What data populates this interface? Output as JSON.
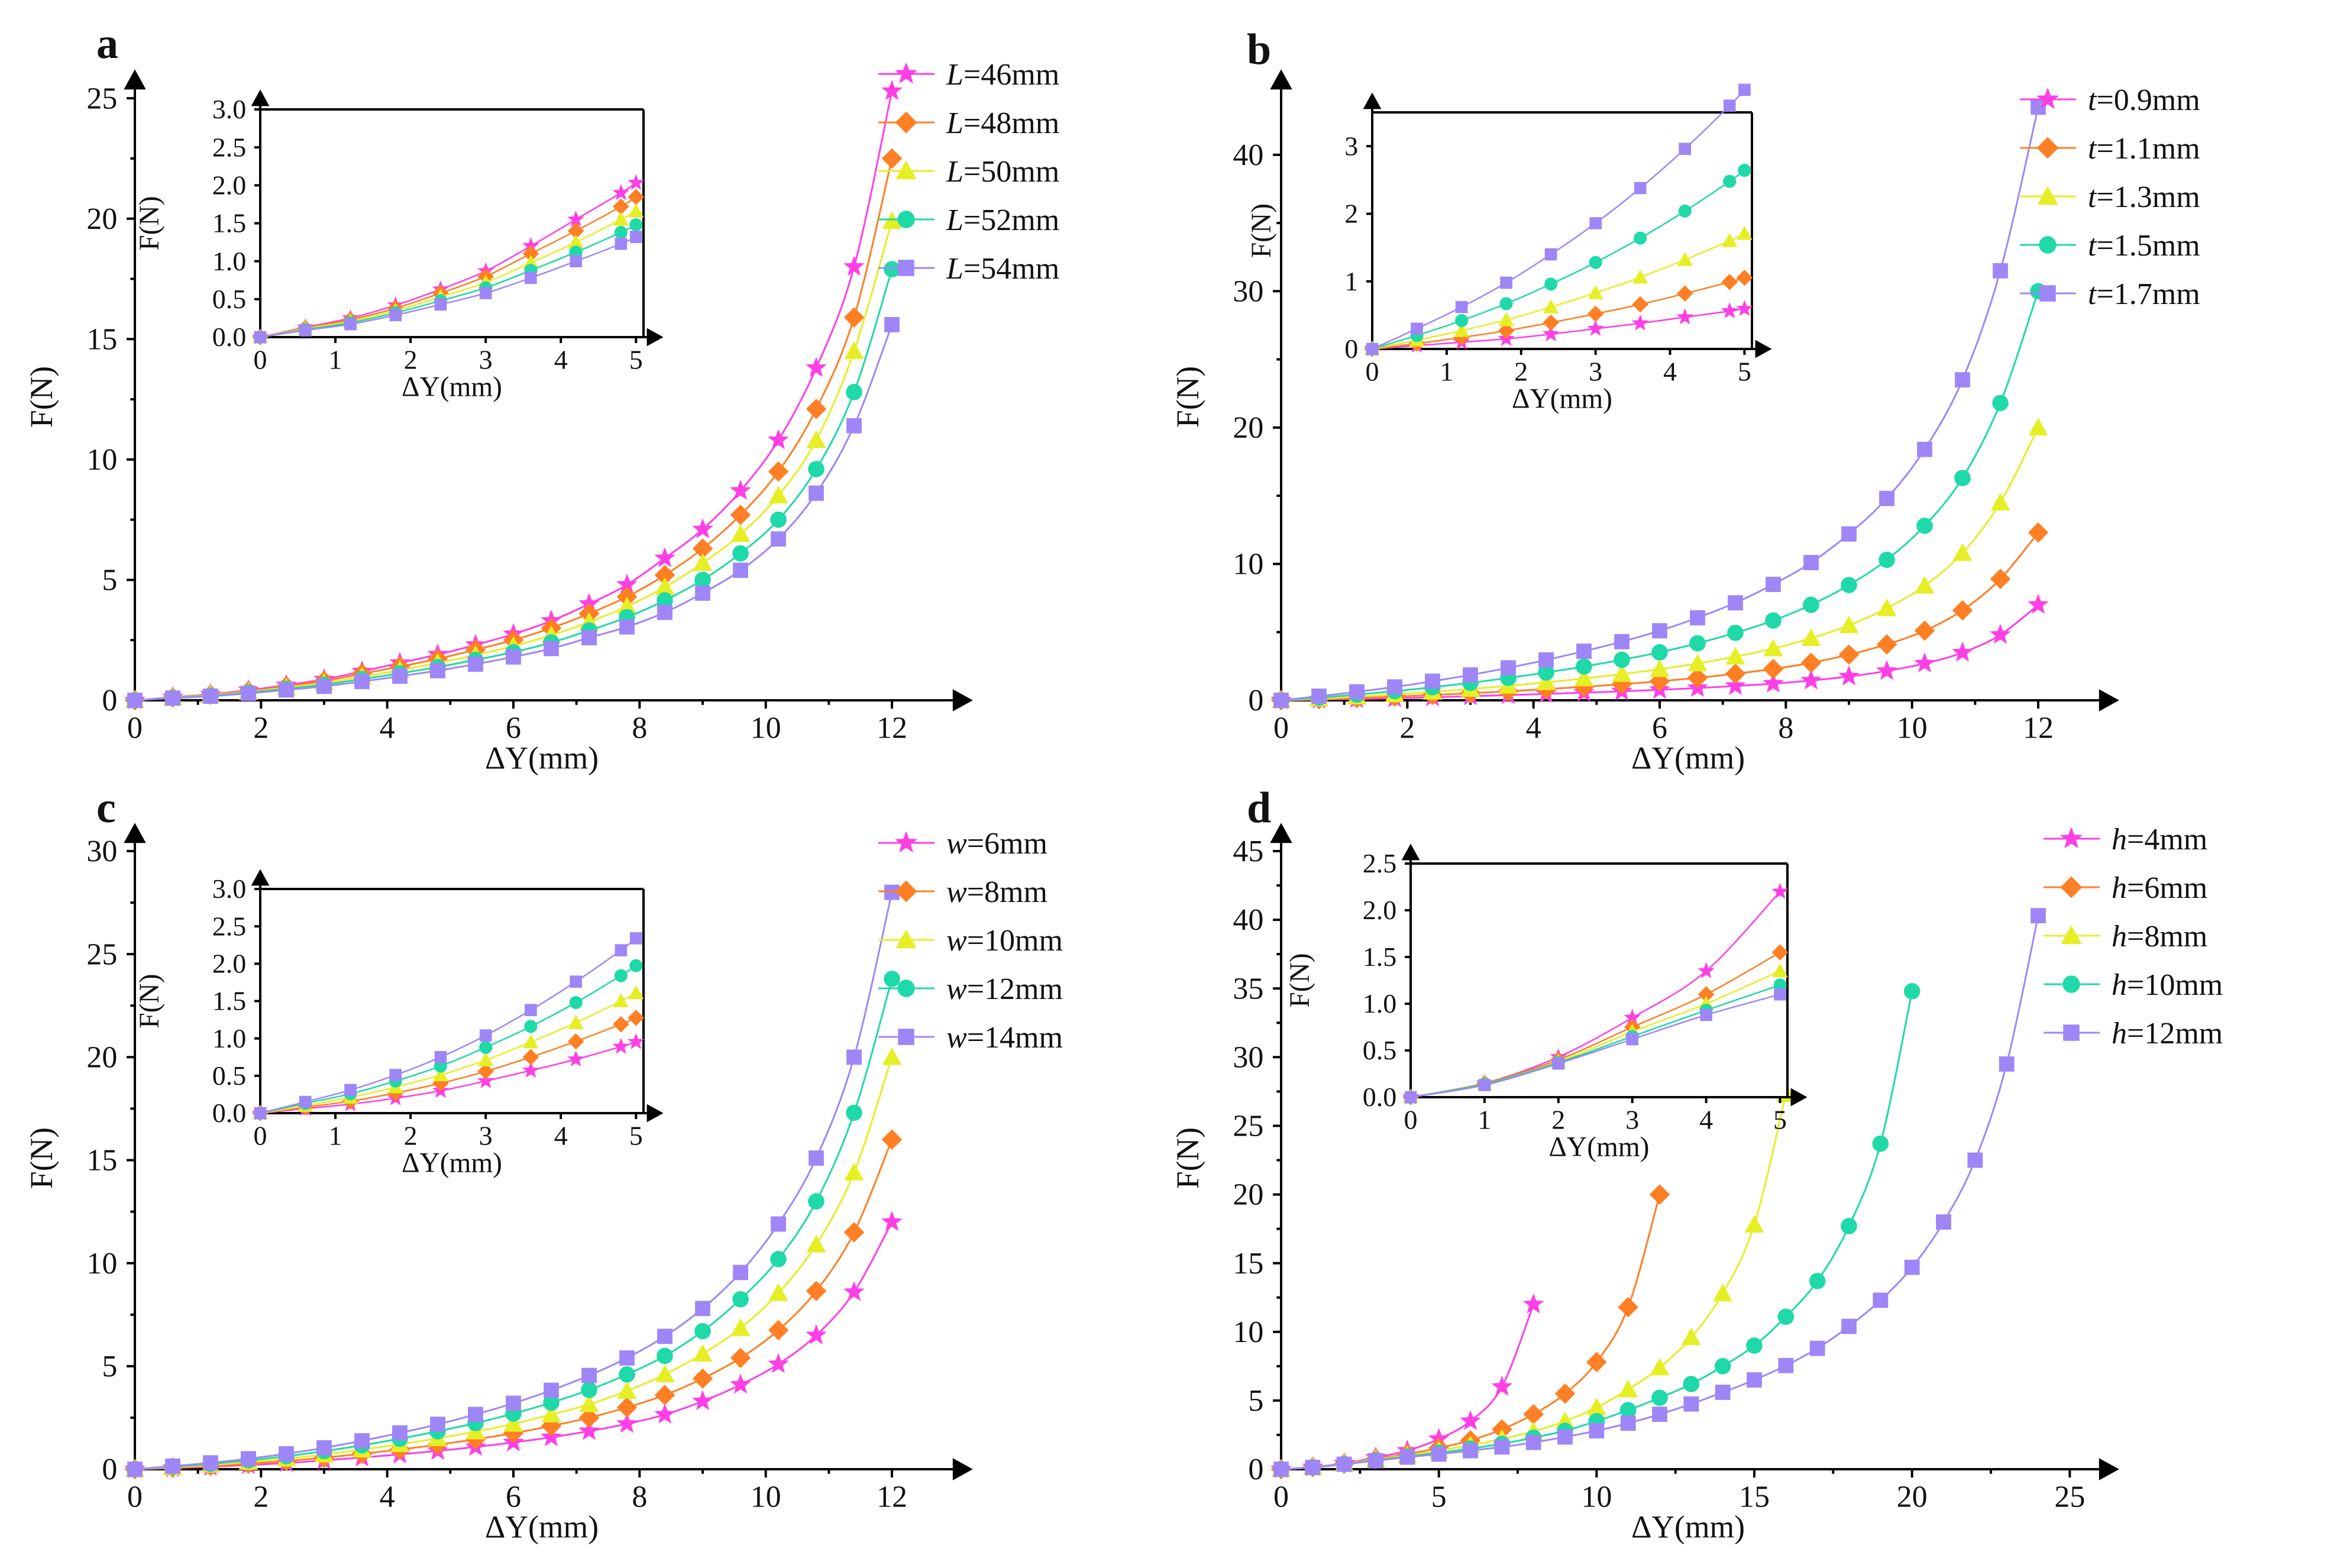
{
  "figure": {
    "description_panels": [
      "a",
      "b",
      "c",
      "d"
    ]
  },
  "colors": {
    "s1": "#ff3fe6",
    "s2": "#ff7f24",
    "s3": "#e6ee25",
    "s4": "#1fd9a8",
    "s5": "#9f86f7",
    "axis": "#000000"
  },
  "chart_data": [
    {
      "panel": "a",
      "type": "line",
      "xlabel": "ΔY(mm)",
      "ylabel": "F(N)",
      "xlim": [
        0,
        12.9
      ],
      "ylim": [
        0,
        25.2
      ],
      "xticks": [
        0,
        2,
        4,
        6,
        8,
        10,
        12
      ],
      "yticks": [
        0,
        5,
        10,
        15,
        20,
        25
      ],
      "legend": [
        {
          "prefix": "L",
          "value": "=46mm"
        },
        {
          "prefix": "L",
          "value": "=48mm"
        },
        {
          "prefix": "L",
          "value": "=50mm"
        },
        {
          "prefix": "L",
          "value": "=52mm"
        },
        {
          "prefix": "L",
          "value": "=54mm"
        }
      ],
      "x": [
        0,
        0.6,
        1.2,
        1.8,
        2.4,
        3.0,
        3.6,
        4.2,
        4.8,
        5.4,
        6.0,
        6.6,
        7.2,
        7.8,
        8.4,
        9.0,
        9.6,
        10.2,
        10.8,
        11.4,
        12.0
      ],
      "series": [
        {
          "name": "L=46mm",
          "values": [
            0,
            0.13,
            0.25,
            0.42,
            0.63,
            0.87,
            1.2,
            1.55,
            1.9,
            2.3,
            2.75,
            3.3,
            4.0,
            4.8,
            5.9,
            7.1,
            8.7,
            10.8,
            13.8,
            18.0,
            25.3
          ]
        },
        {
          "name": "L=48mm",
          "values": [
            0,
            0.12,
            0.23,
            0.38,
            0.58,
            0.8,
            1.1,
            1.4,
            1.72,
            2.1,
            2.5,
            3.0,
            3.6,
            4.3,
            5.2,
            6.3,
            7.7,
            9.5,
            12.1,
            15.9,
            22.5
          ]
        },
        {
          "name": "L=50mm",
          "values": [
            0,
            0.11,
            0.21,
            0.35,
            0.53,
            0.72,
            0.98,
            1.25,
            1.55,
            1.88,
            2.25,
            2.7,
            3.25,
            3.9,
            4.7,
            5.7,
            6.9,
            8.5,
            10.8,
            14.5,
            19.9
          ]
        },
        {
          "name": "L=52mm",
          "values": [
            0,
            0.1,
            0.19,
            0.32,
            0.48,
            0.65,
            0.88,
            1.12,
            1.38,
            1.68,
            2.0,
            2.4,
            2.9,
            3.45,
            4.15,
            5.0,
            6.1,
            7.5,
            9.6,
            12.8,
            17.9
          ]
        },
        {
          "name": "L=54mm",
          "values": [
            0,
            0.09,
            0.17,
            0.29,
            0.43,
            0.58,
            0.78,
            1.0,
            1.23,
            1.5,
            1.8,
            2.15,
            2.6,
            3.05,
            3.65,
            4.45,
            5.4,
            6.7,
            8.6,
            11.4,
            15.6
          ]
        }
      ],
      "inset": {
        "xlabel": "ΔY(mm)",
        "ylabel": "F(N)",
        "xlim": [
          0,
          5.1
        ],
        "ylim": [
          0,
          3.0
        ],
        "xticks": [
          0,
          1,
          2,
          3,
          4,
          5
        ],
        "yticks": [
          0.0,
          0.5,
          1.0,
          1.5,
          2.0,
          2.5,
          3.0
        ],
        "yticklabels": [
          "0.0",
          "0.5",
          "1.0",
          "1.5",
          "2.0",
          "2.5",
          "3.0"
        ],
        "x": [
          0,
          0.6,
          1.2,
          1.8,
          2.4,
          3.0,
          3.6,
          4.2,
          4.8,
          5.0
        ]
      }
    },
    {
      "panel": "b",
      "type": "line",
      "xlabel": "ΔY(mm)",
      "ylabel": "F(N)",
      "xlim": [
        0,
        12.9
      ],
      "ylim": [
        0,
        44.5
      ],
      "xticks": [
        0,
        2,
        4,
        6,
        8,
        10,
        12
      ],
      "yticks": [
        0,
        10,
        20,
        30,
        40
      ],
      "legend": [
        {
          "prefix": "t",
          "value": "=0.9mm"
        },
        {
          "prefix": "t",
          "value": "=1.1mm"
        },
        {
          "prefix": "t",
          "value": "=1.3mm"
        },
        {
          "prefix": "t",
          "value": "=1.5mm"
        },
        {
          "prefix": "t",
          "value": "=1.7mm"
        }
      ],
      "x": [
        0,
        0.6,
        1.2,
        1.8,
        2.4,
        3.0,
        3.6,
        4.2,
        4.8,
        5.4,
        6.0,
        6.6,
        7.2,
        7.8,
        8.4,
        9.0,
        9.6,
        10.2,
        10.8,
        11.4,
        12.0
      ],
      "series": [
        {
          "name": "t=0.9mm",
          "values": [
            0,
            0.05,
            0.1,
            0.15,
            0.22,
            0.3,
            0.38,
            0.47,
            0.56,
            0.66,
            0.77,
            0.9,
            1.05,
            1.22,
            1.45,
            1.75,
            2.15,
            2.7,
            3.5,
            4.8,
            7.0
          ]
        },
        {
          "name": "t=1.1mm",
          "values": [
            0,
            0.08,
            0.17,
            0.27,
            0.39,
            0.52,
            0.66,
            0.82,
            0.99,
            1.18,
            1.4,
            1.65,
            1.95,
            2.3,
            2.75,
            3.35,
            4.1,
            5.1,
            6.6,
            8.9,
            12.3
          ]
        },
        {
          "name": "t=1.3mm",
          "values": [
            0,
            0.13,
            0.27,
            0.43,
            0.62,
            0.83,
            1.06,
            1.32,
            1.6,
            1.92,
            2.28,
            2.7,
            3.2,
            3.8,
            4.55,
            5.5,
            6.75,
            8.4,
            10.8,
            14.5,
            20.0
          ]
        },
        {
          "name": "t=1.5mm",
          "values": [
            0,
            0.2,
            0.42,
            0.67,
            0.96,
            1.28,
            1.64,
            2.04,
            2.48,
            2.97,
            3.52,
            4.18,
            4.95,
            5.85,
            7.0,
            8.45,
            10.3,
            12.8,
            16.3,
            21.8,
            30.0
          ]
        },
        {
          "name": "t=1.7mm",
          "values": [
            0,
            0.3,
            0.62,
            0.98,
            1.4,
            1.86,
            2.38,
            2.96,
            3.6,
            4.3,
            5.1,
            6.05,
            7.15,
            8.5,
            10.1,
            12.2,
            14.8,
            18.4,
            23.5,
            31.5,
            43.5
          ]
        }
      ],
      "inset": {
        "xlabel": "ΔY(mm)",
        "ylabel": "F(N)",
        "xlim": [
          0,
          5.1
        ],
        "ylim": [
          0,
          3.5
        ],
        "xticks": [
          0,
          1,
          2,
          3,
          4,
          5
        ],
        "yticks": [
          0,
          1,
          2,
          3
        ],
        "yticklabels": [
          "0",
          "1",
          "2",
          "3"
        ],
        "x": [
          0,
          0.6,
          1.2,
          1.8,
          2.4,
          3.0,
          3.6,
          4.2,
          4.8,
          5.0
        ]
      }
    },
    {
      "panel": "c",
      "type": "line",
      "xlabel": "ΔY(mm)",
      "ylabel": "F(N)",
      "xlim": [
        0,
        12.9
      ],
      "ylim": [
        0,
        30.2
      ],
      "xticks": [
        0,
        2,
        4,
        6,
        8,
        10,
        12
      ],
      "yticks": [
        0,
        5,
        10,
        15,
        20,
        25,
        30
      ],
      "legend": [
        {
          "prefix": "w",
          "value": "=6mm"
        },
        {
          "prefix": "w",
          "value": "=8mm"
        },
        {
          "prefix": "w",
          "value": "=10mm"
        },
        {
          "prefix": "w",
          "value": "=12mm"
        },
        {
          "prefix": "w",
          "value": "=14mm"
        }
      ],
      "x": [
        0,
        0.6,
        1.2,
        1.8,
        2.4,
        3.0,
        3.6,
        4.2,
        4.8,
        5.4,
        6.0,
        6.6,
        7.2,
        7.8,
        8.4,
        9.0,
        9.6,
        10.2,
        10.8,
        11.4,
        12.0
      ],
      "series": [
        {
          "name": "w=6mm",
          "values": [
            0,
            0.06,
            0.12,
            0.2,
            0.3,
            0.43,
            0.57,
            0.72,
            0.89,
            1.08,
            1.3,
            1.55,
            1.85,
            2.2,
            2.65,
            3.3,
            4.1,
            5.1,
            6.5,
            8.6,
            12.0
          ]
        },
        {
          "name": "w=8mm",
          "values": [
            0,
            0.08,
            0.16,
            0.27,
            0.4,
            0.56,
            0.75,
            0.96,
            1.19,
            1.45,
            1.75,
            2.1,
            2.5,
            3.0,
            3.6,
            4.4,
            5.4,
            6.75,
            8.65,
            11.5,
            16.0
          ]
        },
        {
          "name": "w=10mm",
          "values": [
            0,
            0.1,
            0.21,
            0.35,
            0.51,
            0.71,
            0.95,
            1.21,
            1.5,
            1.83,
            2.2,
            2.65,
            3.15,
            3.8,
            4.6,
            5.6,
            6.85,
            8.55,
            10.9,
            14.4,
            20.0
          ]
        },
        {
          "name": "w=12mm",
          "values": [
            0,
            0.13,
            0.26,
            0.43,
            0.63,
            0.88,
            1.16,
            1.48,
            1.84,
            2.24,
            2.7,
            3.23,
            3.85,
            4.6,
            5.5,
            6.7,
            8.25,
            10.2,
            13.0,
            17.3,
            23.8
          ]
        },
        {
          "name": "w=14mm",
          "values": [
            0,
            0.15,
            0.31,
            0.51,
            0.75,
            1.04,
            1.38,
            1.76,
            2.18,
            2.66,
            3.2,
            3.83,
            4.55,
            5.4,
            6.45,
            7.8,
            9.55,
            11.9,
            15.1,
            20.0,
            28.0
          ]
        }
      ],
      "inset": {
        "xlabel": "ΔY(mm)",
        "ylabel": "F(N)",
        "xlim": [
          0,
          5.1
        ],
        "ylim": [
          0,
          3.0
        ],
        "xticks": [
          0,
          1,
          2,
          3,
          4,
          5
        ],
        "yticks": [
          0.0,
          0.5,
          1.0,
          1.5,
          2.0,
          2.5,
          3.0
        ],
        "yticklabels": [
          "0.0",
          "0.5",
          "1.0",
          "1.5",
          "2.0",
          "2.5",
          "3.0"
        ],
        "x": [
          0,
          0.6,
          1.2,
          1.8,
          2.4,
          3.0,
          3.6,
          4.2,
          4.8,
          5.0
        ]
      }
    },
    {
      "panel": "d",
      "type": "line",
      "xlabel": "ΔY(mm)",
      "ylabel": "F(N)",
      "xlim": [
        0,
        25.8
      ],
      "ylim": [
        0,
        45.3
      ],
      "xticks": [
        0,
        5,
        10,
        15,
        20,
        25
      ],
      "yticks": [
        0,
        5,
        10,
        15,
        20,
        25,
        30,
        35,
        40,
        45
      ],
      "legend": [
        {
          "prefix": "h",
          "value": "=4mm"
        },
        {
          "prefix": "h",
          "value": "=6mm"
        },
        {
          "prefix": "h",
          "value": "=8mm"
        },
        {
          "prefix": "h",
          "value": "=10mm"
        },
        {
          "prefix": "h",
          "value": "=12mm"
        }
      ],
      "series": [
        {
          "name": "h=4mm",
          "x": [
            0,
            1,
            2,
            3,
            4,
            5,
            6,
            7,
            8
          ],
          "values": [
            0,
            0.15,
            0.43,
            0.85,
            1.35,
            2.2,
            3.5,
            6.0,
            12.0
          ]
        },
        {
          "name": "h=6mm",
          "x": [
            0,
            1,
            2,
            3,
            4,
            5,
            6,
            7,
            8,
            9,
            10,
            11,
            12
          ],
          "values": [
            0,
            0.15,
            0.4,
            0.75,
            1.1,
            1.55,
            2.1,
            2.9,
            4.0,
            5.5,
            7.8,
            11.8,
            20.0
          ]
        },
        {
          "name": "h=8mm",
          "x": [
            0,
            1,
            2,
            3,
            4,
            5,
            6,
            7,
            8,
            9,
            10,
            11,
            12,
            13,
            14,
            15,
            16
          ],
          "values": [
            0,
            0.14,
            0.38,
            0.7,
            1.0,
            1.35,
            1.75,
            2.2,
            2.75,
            3.5,
            4.5,
            5.8,
            7.4,
            9.6,
            12.8,
            17.8,
            27.3
          ]
        },
        {
          "name": "h=10mm",
          "x": [
            0,
            1,
            2,
            3,
            4,
            5,
            6,
            7,
            8,
            9,
            10,
            11,
            12,
            13,
            14,
            15,
            16,
            17,
            18,
            19,
            20
          ],
          "values": [
            0,
            0.14,
            0.37,
            0.65,
            0.93,
            1.2,
            1.5,
            1.85,
            2.3,
            2.8,
            3.5,
            4.3,
            5.2,
            6.2,
            7.5,
            9.0,
            11.1,
            13.7,
            17.7,
            23.7,
            34.8
          ]
        },
        {
          "name": "h=12mm",
          "x": [
            0,
            1,
            2,
            3,
            4,
            5,
            6,
            7,
            8,
            9,
            10,
            11,
            12,
            13,
            14,
            15,
            16,
            17,
            18,
            19,
            20,
            21,
            22,
            23,
            24
          ],
          "values": [
            0,
            0.13,
            0.36,
            0.62,
            0.88,
            1.1,
            1.35,
            1.62,
            1.95,
            2.35,
            2.8,
            3.35,
            4.0,
            4.75,
            5.6,
            6.5,
            7.55,
            8.8,
            10.4,
            12.3,
            14.7,
            18.0,
            22.5,
            29.5,
            40.3
          ]
        }
      ],
      "inset": {
        "xlabel": "ΔY(mm)",
        "ylabel": "F(N)",
        "xlim": [
          0,
          5.1
        ],
        "ylim": [
          0,
          2.5
        ],
        "xticks": [
          0,
          1,
          2,
          3,
          4,
          5
        ],
        "yticks": [
          0.0,
          0.5,
          1.0,
          1.5,
          2.0,
          2.5
        ],
        "yticklabels": [
          "0.0",
          "0.5",
          "1.0",
          "1.5",
          "2.0",
          "2.5"
        ]
      }
    }
  ]
}
